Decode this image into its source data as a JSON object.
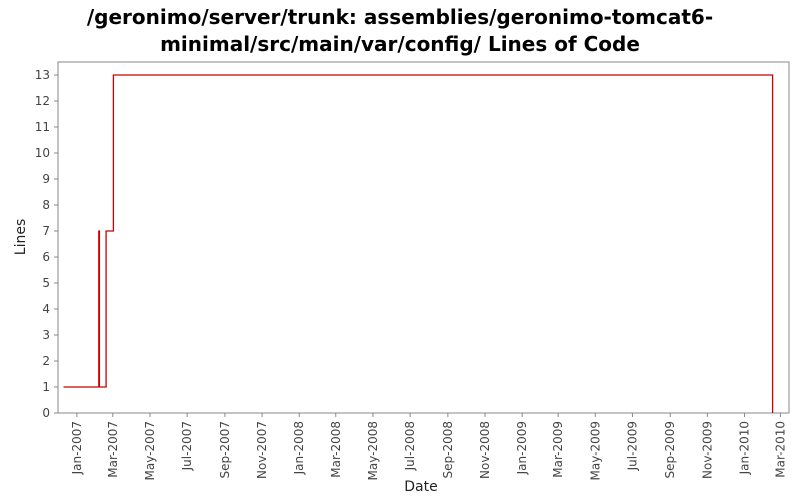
{
  "chart_data": {
    "type": "line",
    "title_lines": [
      "/geronimo/server/trunk: assemblies/geronimo-tomcat6-",
      "minimal/src/main/var/config/ Lines of Code"
    ],
    "xlabel": "Date",
    "ylabel": "Lines",
    "step": true,
    "xlim": [
      "2006-12-01",
      "2010-03-15"
    ],
    "ylim": [
      0,
      13.5
    ],
    "yticks": [
      0,
      1,
      2,
      3,
      4,
      5,
      6,
      7,
      8,
      9,
      10,
      11,
      12,
      13
    ],
    "xticks": [
      {
        "date": "2007-01-01",
        "label": "Jan-2007"
      },
      {
        "date": "2007-03-01",
        "label": "Mar-2007"
      },
      {
        "date": "2007-05-01",
        "label": "May-2007"
      },
      {
        "date": "2007-07-01",
        "label": "Jul-2007"
      },
      {
        "date": "2007-09-01",
        "label": "Sep-2007"
      },
      {
        "date": "2007-11-01",
        "label": "Nov-2007"
      },
      {
        "date": "2008-01-01",
        "label": "Jan-2008"
      },
      {
        "date": "2008-03-01",
        "label": "Mar-2008"
      },
      {
        "date": "2008-05-01",
        "label": "May-2008"
      },
      {
        "date": "2008-07-01",
        "label": "Jul-2008"
      },
      {
        "date": "2008-09-01",
        "label": "Sep-2008"
      },
      {
        "date": "2008-11-01",
        "label": "Nov-2008"
      },
      {
        "date": "2009-01-01",
        "label": "Jan-2009"
      },
      {
        "date": "2009-03-01",
        "label": "Mar-2009"
      },
      {
        "date": "2009-05-01",
        "label": "May-2009"
      },
      {
        "date": "2009-07-01",
        "label": "Jul-2009"
      },
      {
        "date": "2009-09-01",
        "label": "Sep-2009"
      },
      {
        "date": "2009-11-01",
        "label": "Nov-2009"
      },
      {
        "date": "2010-01-01",
        "label": "Jan-2010"
      },
      {
        "date": "2010-03-01",
        "label": "Mar-2010"
      }
    ],
    "series": [
      {
        "color": "#cc0000",
        "points": [
          {
            "x": "2006-12-10",
            "y": 1
          },
          {
            "x": "2007-02-06",
            "y": 7
          },
          {
            "x": "2007-02-07",
            "y": 1
          },
          {
            "x": "2007-02-18",
            "y": 7
          },
          {
            "x": "2007-03-02",
            "y": 13
          },
          {
            "x": "2010-02-16",
            "y": 0
          }
        ]
      }
    ],
    "grid": false
  }
}
